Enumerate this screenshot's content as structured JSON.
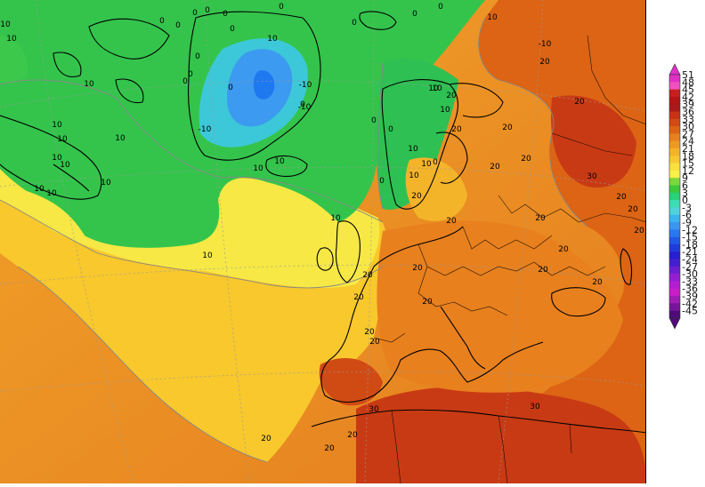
{
  "legend": {
    "ticks": [
      "51",
      "48",
      "45",
      "42",
      "39",
      "36",
      "33",
      "30",
      "27",
      "24",
      "21",
      "18",
      "15",
      "12",
      "9",
      "6",
      "3",
      "0",
      "-3",
      "-6",
      "-9",
      "-12",
      "-15",
      "-18",
      "-21",
      "-24",
      "-27",
      "-30",
      "-33",
      "-36",
      "-39",
      "-42",
      "-45"
    ],
    "colors": [
      "#e030c8",
      "#f050c0",
      "#c81e1e",
      "#b41414",
      "#aa1a1a",
      "#c83214",
      "#d24a14",
      "#dc6414",
      "#e6821e",
      "#ee9a22",
      "#f4b42a",
      "#f8c830",
      "#fae03a",
      "#faf048",
      "#7ad83c",
      "#3cc83c",
      "#28d278",
      "#3cdcb4",
      "#50d2dc",
      "#3cb4f0",
      "#3c96f0",
      "#2878f0",
      "#1e5ae6",
      "#1e3cdc",
      "#281ed2",
      "#461ed2",
      "#6e1ed2",
      "#961ed2",
      "#b41ed2",
      "#c81ec8",
      "#a01eb4",
      "#78149a",
      "#500a7a"
    ]
  },
  "map_labels": [
    "0",
    "0",
    "0",
    "0",
    "0",
    "0",
    "0",
    "0",
    "0",
    "0",
    "0",
    "0",
    "0",
    "0",
    "0",
    "0",
    "0",
    "0",
    "0",
    "10",
    "10",
    "10",
    "10",
    "10",
    "10",
    "10",
    "10",
    "10",
    "10",
    "10",
    "10",
    "10",
    "10",
    "10",
    "10",
    "10",
    "10",
    "10",
    "10",
    "10",
    "10",
    "10",
    "-10",
    "-10",
    "-10",
    "-10",
    "20",
    "20",
    "20",
    "20",
    "20",
    "20",
    "20",
    "20",
    "20",
    "20",
    "20",
    "20",
    "20",
    "20",
    "20",
    "20",
    "20",
    "20",
    "20",
    "20",
    "20",
    "20",
    "20",
    "20",
    "20",
    "30",
    "30",
    "30",
    "30"
  ]
}
